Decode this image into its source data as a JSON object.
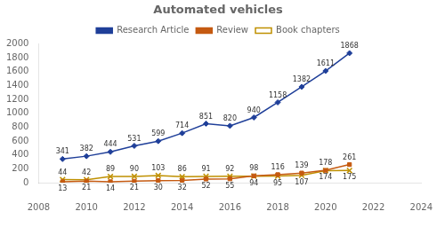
{
  "chart_data": {
    "type": "line",
    "title": "Automated vehicles",
    "x": [
      2009,
      2010,
      2011,
      2012,
      2013,
      2014,
      2015,
      2016,
      2017,
      2018,
      2019,
      2020,
      2021
    ],
    "series": [
      {
        "name": "Research Article",
        "color": "#1f3f99",
        "marker": "diamond",
        "values": [
          341,
          382,
          444,
          531,
          599,
          714,
          851,
          820,
          940,
          1158,
          1382,
          1611,
          1868
        ]
      },
      {
        "name": "Review",
        "color": "#c55a11",
        "marker": "square",
        "values": [
          13,
          21,
          14,
          21,
          30,
          32,
          52,
          55,
          98,
          116,
          139,
          178,
          261
        ]
      },
      {
        "name": "Book chapters",
        "color": "#bf9000",
        "marker": "x",
        "values": [
          44,
          42,
          89,
          90,
          103,
          86,
          91,
          92,
          94,
          95,
          107,
          174,
          175
        ]
      }
    ],
    "xlim": [
      2008,
      2024
    ],
    "xticks": [
      2008,
      2010,
      2012,
      2014,
      2016,
      2018,
      2020,
      2022,
      2024
    ],
    "ylim": [
      0,
      2000
    ],
    "yticks": [
      0,
      200,
      400,
      600,
      800,
      1000,
      1200,
      1400,
      1600,
      1800,
      2000
    ],
    "grid": false,
    "legend": "top",
    "data_labels": true
  }
}
